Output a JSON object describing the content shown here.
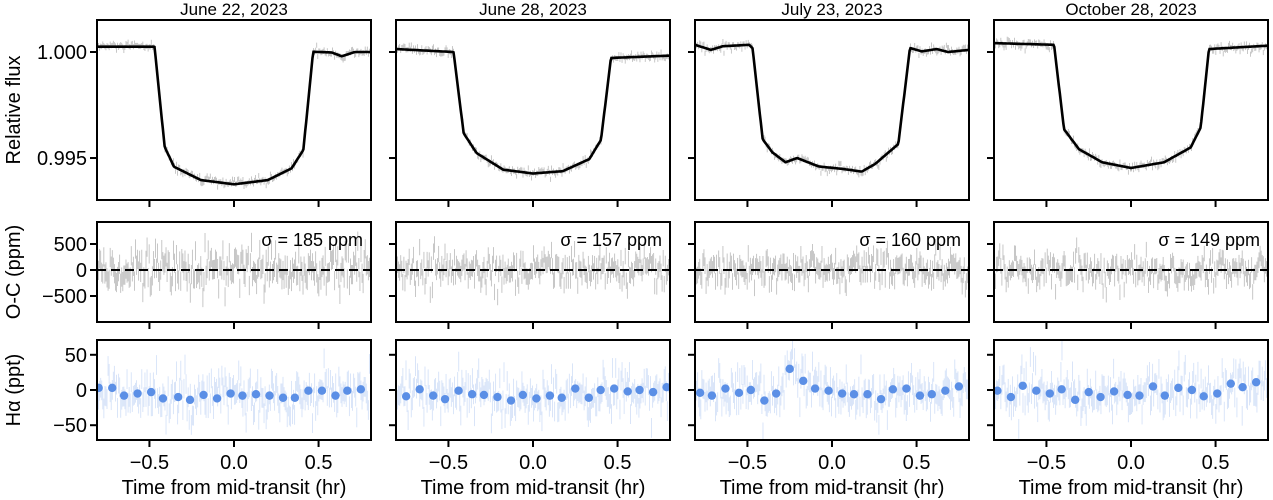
{
  "figure": {
    "xlabel": "Time from mid-transit (hr)",
    "row_labels": [
      "Relative flux",
      "O-C (ppm)",
      "Hα (ppt)"
    ],
    "colors": {
      "model": "#000000",
      "raw": "#808080",
      "halpha_raw": "#b9cff3",
      "halpha_binned": "#5b8fe6"
    }
  },
  "chart_data": [
    {
      "type": "line",
      "title": "June 22, 2023",
      "xlim": [
        -0.81,
        0.81
      ],
      "xticks": [
        -0.5,
        0.0,
        0.5
      ],
      "xtick_labels": [
        "−0.5",
        "0.0",
        "0.5"
      ],
      "flux": {
        "ylim": [
          0.99302,
          1.00151
        ],
        "yticks": [
          1.0,
          0.995
        ],
        "ytick_labels": [
          "1.000",
          "0.995"
        ],
        "model_x": [
          -0.81,
          -0.47,
          -0.41,
          -0.355,
          -0.196,
          0.0,
          0.2,
          0.34,
          0.41,
          0.468,
          0.577,
          0.637,
          0.715,
          0.81
        ],
        "model_y": [
          1.00025,
          1.00025,
          0.99553,
          0.99459,
          0.99396,
          0.99376,
          0.99396,
          0.99451,
          0.99538,
          1.00001,
          0.99998,
          0.9998,
          1.0,
          1.0
        ]
      },
      "residuals": {
        "ylim": [
          -1000,
          923
        ],
        "yticks": [
          500,
          0,
          -500
        ],
        "ytick_labels": [
          "500",
          "0",
          "−500"
        ],
        "sigma_ppm": 185,
        "sigma_label": "σ = 185 ppm"
      },
      "halpha": {
        "ylim": [
          -71,
          71
        ],
        "yticks": [
          50,
          0,
          -50
        ],
        "ytick_labels": [
          "50",
          "0",
          "−50"
        ],
        "binned_x": [
          -0.8,
          -0.72,
          -0.65,
          -0.57,
          -0.49,
          -0.42,
          -0.33,
          -0.26,
          -0.18,
          -0.1,
          -0.02,
          0.05,
          0.13,
          0.21,
          0.29,
          0.36,
          0.44,
          0.52,
          0.6,
          0.67,
          0.75
        ],
        "binned_y": [
          3,
          3,
          -8,
          -5,
          -3,
          -12,
          -10,
          -14,
          -7,
          -12,
          -5,
          -8,
          -6,
          -8,
          -11,
          -11,
          -1,
          -1,
          -8,
          -1,
          1
        ]
      }
    },
    {
      "type": "line",
      "title": "June 28, 2023",
      "xlim": [
        -0.81,
        0.81
      ],
      "xticks": [
        -0.5,
        0.0,
        0.5
      ],
      "xtick_labels": [
        "−0.5",
        "0.0",
        "0.5"
      ],
      "flux": {
        "ylim": [
          0.99302,
          1.00151
        ],
        "yticks": [
          1.0,
          0.995
        ],
        "ytick_labels": [],
        "model_x": [
          -0.81,
          -0.47,
          -0.41,
          -0.333,
          -0.176,
          0.0,
          0.176,
          0.333,
          0.402,
          0.461,
          0.81
        ],
        "model_y": [
          1.00014,
          1.0,
          0.99617,
          0.99523,
          0.99445,
          0.99427,
          0.99438,
          0.99495,
          0.99586,
          0.99972,
          0.99983
        ]
      },
      "residuals": {
        "ylim": [
          -1000,
          923
        ],
        "yticks": [
          500,
          0,
          -500
        ],
        "ytick_labels": [],
        "sigma_ppm": 157,
        "sigma_label": "σ = 157 ppm"
      },
      "halpha": {
        "ylim": [
          -71,
          71
        ],
        "yticks": [
          50,
          0,
          -50
        ],
        "ytick_labels": [],
        "binned_x": [
          -0.75,
          -0.67,
          -0.59,
          -0.52,
          -0.44,
          -0.36,
          -0.29,
          -0.21,
          -0.13,
          -0.06,
          0.02,
          0.1,
          0.17,
          0.25,
          0.33,
          0.4,
          0.48,
          0.56,
          0.63,
          0.71,
          0.79
        ],
        "binned_y": [
          -9,
          1,
          -8,
          -13,
          -1,
          -6,
          -7,
          -10,
          -15,
          -7,
          -12,
          -8,
          -11,
          2,
          -11,
          0,
          2,
          -2,
          0,
          -3,
          4
        ]
      }
    },
    {
      "type": "line",
      "title": "July 23, 2023",
      "xlim": [
        -0.81,
        0.81
      ],
      "xticks": [
        -0.5,
        0.0,
        0.5
      ],
      "xtick_labels": [
        "−0.5",
        "0.0",
        "0.5"
      ],
      "flux": {
        "ylim": [
          0.99302,
          1.00151
        ],
        "yticks": [
          1.0,
          0.995
        ],
        "ytick_labels": [],
        "model_x": [
          -0.81,
          -0.716,
          -0.647,
          -0.49,
          -0.47,
          -0.41,
          -0.353,
          -0.275,
          -0.206,
          -0.078,
          0.059,
          0.176,
          0.255,
          0.392,
          0.461,
          0.53,
          0.618,
          0.686,
          0.81
        ],
        "model_y": [
          1.00034,
          1.0001,
          1.00027,
          1.00034,
          1.00019,
          0.99589,
          0.99527,
          0.9948,
          0.995,
          0.9946,
          0.99449,
          0.99436,
          0.99472,
          0.99566,
          1.00019,
          1.00003,
          1.00014,
          1.0,
          1.0001
        ]
      },
      "residuals": {
        "ylim": [
          -1000,
          923
        ],
        "yticks": [
          500,
          0,
          -500
        ],
        "ytick_labels": [],
        "sigma_ppm": 160,
        "sigma_label": "σ = 160 ppm"
      },
      "halpha": {
        "ylim": [
          -71,
          71
        ],
        "yticks": [
          50,
          0,
          -50
        ],
        "ytick_labels": [],
        "binned_x": [
          -0.78,
          -0.71,
          -0.63,
          -0.55,
          -0.48,
          -0.4,
          -0.33,
          -0.25,
          -0.17,
          -0.1,
          -0.02,
          0.06,
          0.13,
          0.21,
          0.29,
          0.36,
          0.44,
          0.52,
          0.59,
          0.67,
          0.75
        ],
        "binned_y": [
          -4,
          -8,
          2,
          -4,
          0,
          -15,
          -5,
          30,
          13,
          2,
          -1,
          -5,
          -6,
          -6,
          -13,
          1,
          2,
          -8,
          -6,
          -1,
          5
        ]
      }
    },
    {
      "type": "line",
      "title": "October 28, 2023",
      "xlim": [
        -0.81,
        0.81
      ],
      "xticks": [
        -0.5,
        0.0,
        0.5
      ],
      "xtick_labels": [
        "−0.5",
        "0.0",
        "0.5"
      ],
      "flux": {
        "ylim": [
          0.99302,
          1.00151
        ],
        "yticks": [
          1.0,
          0.995
        ],
        "ytick_labels": [],
        "model_x": [
          -0.81,
          -0.455,
          -0.396,
          -0.308,
          -0.171,
          0.0,
          0.196,
          0.353,
          0.412,
          0.461,
          0.81
        ],
        "model_y": [
          1.00042,
          1.00034,
          0.99636,
          0.99542,
          0.9948,
          0.99453,
          0.9948,
          0.9955,
          0.99644,
          1.00014,
          1.0003
        ]
      },
      "residuals": {
        "ylim": [
          -1000,
          923
        ],
        "yticks": [
          500,
          0,
          -500
        ],
        "ytick_labels": [],
        "sigma_ppm": 149,
        "sigma_label": "σ = 149 ppm"
      },
      "halpha": {
        "ylim": [
          -71,
          71
        ],
        "yticks": [
          50,
          0,
          -50
        ],
        "ytick_labels": [],
        "binned_x": [
          -0.79,
          -0.71,
          -0.64,
          -0.56,
          -0.48,
          -0.41,
          -0.33,
          -0.25,
          -0.18,
          -0.1,
          -0.02,
          0.05,
          0.13,
          0.2,
          0.28,
          0.36,
          0.43,
          0.51,
          0.59,
          0.66,
          0.74
        ],
        "binned_y": [
          -1,
          -10,
          6,
          -1,
          -5,
          1,
          -14,
          -3,
          -10,
          -2,
          -7,
          -8,
          5,
          -8,
          3,
          0,
          -9,
          -5,
          9,
          4,
          11
        ]
      }
    }
  ]
}
